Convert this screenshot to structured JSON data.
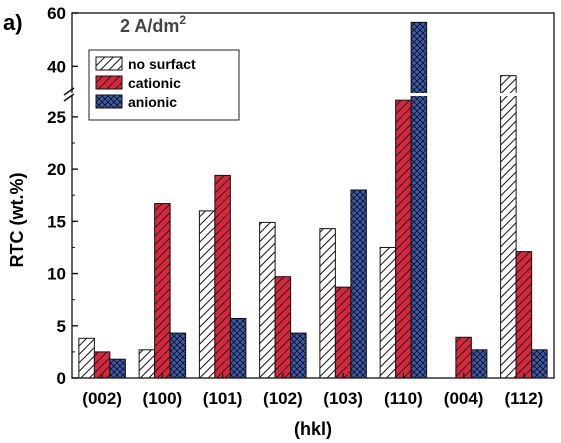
{
  "chart_data": {
    "type": "bar",
    "panel_label": "a)",
    "title": "2 A/dm",
    "title_superscript": "2",
    "xlabel": "(hkl)",
    "ylabel": "RTC (wt.%)",
    "categories": [
      "(002)",
      "(100)",
      "(101)",
      "(102)",
      "(103)",
      "(110)",
      "(004)",
      "(112)"
    ],
    "ylim_lower": [
      0,
      27
    ],
    "ylim_upper": [
      30,
      60
    ],
    "axis_break": "between 27 and 30",
    "yticks_lower": [
      "0",
      "5",
      "10",
      "15",
      "20",
      "25"
    ],
    "yticks_upper": [
      "40",
      "60"
    ],
    "grid": false,
    "legend_position": "top-left",
    "series": [
      {
        "name": "no surfact",
        "pattern": "diagonal-hatch-white",
        "color": "#000000",
        "values": [
          3.8,
          2.7,
          16.0,
          14.9,
          14.3,
          12.5,
          null,
          36.5
        ]
      },
      {
        "name": "cationic",
        "pattern": "diagonal-hatch-red",
        "color": "#d7263d",
        "values": [
          2.5,
          16.7,
          19.4,
          9.7,
          8.7,
          26.6,
          3.9,
          12.1
        ]
      },
      {
        "name": "anionic",
        "pattern": "crosshatch-blue",
        "color": "#3b5bb5",
        "values": [
          1.8,
          4.3,
          5.7,
          4.3,
          18.0,
          56.5,
          2.7,
          2.7
        ]
      }
    ]
  }
}
